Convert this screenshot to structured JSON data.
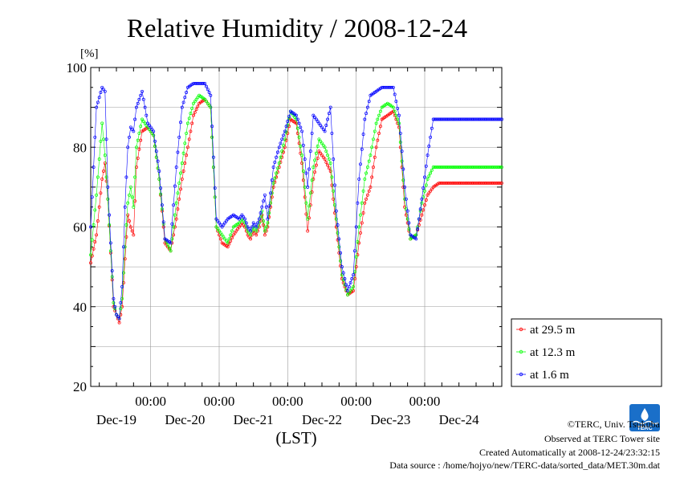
{
  "chart_data": {
    "type": "line",
    "title": "Relative Humidity / 2008-12-24",
    "ylabel": "[%]",
    "xlabel": "(LST)",
    "ylim": [
      20,
      100
    ],
    "xlim_hours": [
      0,
      144
    ],
    "yticks": [
      20,
      40,
      60,
      80,
      100
    ],
    "time_ticks": [
      "00:00",
      "00:00",
      "00:00",
      "00:00",
      "00:00"
    ],
    "date_labels": [
      "Dec-19",
      "Dec-20",
      "Dec-21",
      "Dec-22",
      "Dec-23",
      "Dec-24"
    ],
    "grid": true,
    "legend_position": "bottom-right",
    "series": [
      {
        "name": "at 29.5 m",
        "color": "#ff0000",
        "x": [
          0,
          2,
          4,
          5,
          6,
          8,
          9,
          10,
          11,
          12,
          13,
          14,
          15,
          16,
          18,
          20,
          22,
          24,
          26,
          28,
          30,
          32,
          34,
          36,
          38,
          40,
          42,
          44,
          46,
          48,
          50,
          52,
          53,
          54,
          55,
          56,
          57,
          58,
          59,
          60,
          61,
          62,
          64,
          66,
          68,
          70,
          72,
          74,
          76,
          78,
          80,
          82,
          84,
          86,
          88,
          90,
          92,
          94,
          96,
          98,
          100,
          102,
          104,
          106,
          108,
          110,
          112,
          114,
          116,
          118,
          120,
          122,
          124,
          126,
          128,
          130,
          132,
          134,
          136,
          138,
          140,
          142,
          144
        ],
        "values": [
          51,
          58,
          72,
          76,
          67,
          40,
          38,
          36,
          40,
          52,
          63,
          60,
          58,
          75,
          84,
          85,
          83,
          72,
          56,
          54,
          62,
          72,
          80,
          88,
          91,
          92,
          90,
          60,
          56,
          55,
          58,
          60,
          61,
          60,
          58,
          57,
          59,
          58,
          60,
          63,
          58,
          60,
          70,
          75,
          80,
          87,
          86,
          76,
          59,
          72,
          79,
          77,
          74,
          60,
          47,
          43,
          44,
          56,
          66,
          70,
          80,
          87,
          88,
          89,
          85,
          65,
          57,
          58,
          63,
          68,
          70,
          71,
          71,
          71,
          71,
          71,
          71,
          71,
          71,
          71,
          71,
          71,
          71
        ]
      },
      {
        "name": "at 12.3 m",
        "color": "#00ff00",
        "x": [
          0,
          2,
          4,
          5,
          6,
          8,
          9,
          10,
          11,
          12,
          13,
          14,
          15,
          16,
          18,
          20,
          22,
          24,
          26,
          28,
          30,
          32,
          34,
          36,
          38,
          40,
          42,
          44,
          46,
          48,
          50,
          52,
          53,
          54,
          55,
          56,
          57,
          58,
          59,
          60,
          61,
          62,
          64,
          66,
          68,
          70,
          72,
          74,
          76,
          78,
          80,
          82,
          84,
          86,
          88,
          90,
          92,
          94,
          96,
          98,
          100,
          102,
          104,
          106,
          108,
          110,
          112,
          114,
          116,
          118,
          120,
          122,
          124,
          126,
          128,
          130,
          132,
          134,
          136,
          138,
          140,
          142,
          144
        ],
        "values": [
          53,
          68,
          86,
          78,
          67,
          41,
          38,
          37,
          42,
          55,
          66,
          70,
          65,
          80,
          87,
          85,
          83,
          72,
          57,
          54,
          66,
          76,
          86,
          91,
          93,
          92,
          90,
          60,
          58,
          56,
          60,
          61,
          62,
          61,
          59,
          58,
          60,
          59,
          61,
          64,
          59,
          61,
          71,
          76,
          82,
          89,
          87,
          78,
          62,
          75,
          82,
          80,
          76,
          62,
          48,
          43,
          45,
          60,
          72,
          78,
          86,
          90,
          91,
          90,
          86,
          67,
          57,
          58,
          66,
          72,
          75,
          75,
          75,
          75,
          75,
          75,
          75,
          75,
          75,
          75,
          75,
          75,
          75
        ]
      },
      {
        "name": "at 1.6 m",
        "color": "#0000ff",
        "x": [
          0,
          2,
          4,
          5,
          6,
          8,
          9,
          10,
          11,
          12,
          13,
          14,
          15,
          16,
          18,
          20,
          22,
          24,
          26,
          28,
          30,
          32,
          34,
          36,
          38,
          40,
          42,
          44,
          46,
          48,
          50,
          52,
          53,
          54,
          55,
          56,
          57,
          58,
          59,
          60,
          61,
          62,
          64,
          66,
          68,
          70,
          72,
          74,
          76,
          78,
          80,
          82,
          84,
          86,
          88,
          90,
          92,
          94,
          96,
          98,
          100,
          102,
          104,
          106,
          108,
          110,
          112,
          114,
          116,
          118,
          120,
          122,
          124,
          126,
          128,
          130,
          132,
          134,
          136,
          138,
          140,
          142,
          144
        ],
        "values": [
          60,
          90,
          95,
          94,
          70,
          42,
          38,
          37,
          45,
          65,
          80,
          85,
          84,
          90,
          94,
          86,
          84,
          74,
          57,
          56,
          75,
          90,
          95,
          96,
          96,
          96,
          93,
          62,
          60,
          62,
          63,
          62,
          63,
          62,
          60,
          59,
          61,
          60,
          62,
          65,
          68,
          62,
          75,
          80,
          84,
          89,
          88,
          84,
          70,
          88,
          86,
          84,
          90,
          64,
          50,
          44,
          48,
          72,
          87,
          93,
          94,
          95,
          95,
          95,
          88,
          70,
          58,
          57,
          67,
          78,
          87,
          87,
          87,
          87,
          87,
          87,
          87,
          87,
          87,
          87,
          87,
          87,
          87
        ]
      }
    ]
  },
  "credits": {
    "copyright": "©TERC, Univ. Tsukuba",
    "observed": "Observed at TERC Tower site",
    "created": "Created Automatically at 2008-12-24/23:32:15",
    "source": "Data source : /home/hojyo/new/TERC-data/sorted_data/MET.30m.dat"
  },
  "logo": {
    "text": "TERC",
    "color": "#1a6fc9"
  }
}
